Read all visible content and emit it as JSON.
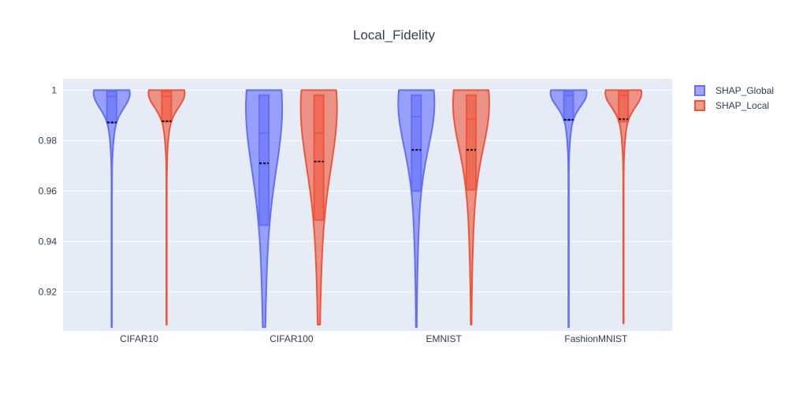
{
  "chart_data": {
    "type": "violin",
    "title": "Local_Fidelity",
    "xlabel": "",
    "ylabel": "",
    "categories": [
      "CIFAR10",
      "CIFAR100",
      "EMNIST",
      "FashionMNIST"
    ],
    "ylim": [
      0.9045,
      1.0045
    ],
    "yticks": [
      0.92,
      0.94,
      0.96,
      0.98,
      1
    ],
    "ytick_labels": [
      "0.92",
      "0.94",
      "0.96",
      "0.98",
      "1"
    ],
    "grid": true,
    "legend_position": "top-right",
    "series": [
      {
        "name": "SHAP_Global",
        "color": "#636efa",
        "fill": "rgba(99,110,250,0.6)",
        "stats": [
          {
            "min": 0.906,
            "q1": 0.987,
            "median": 0.9975,
            "q3": 0.9995,
            "max": 1.0,
            "mean": 0.9872
          },
          {
            "min": 0.906,
            "q1": 0.9465,
            "median": 0.983,
            "q3": 0.998,
            "max": 1.0,
            "mean": 0.971
          },
          {
            "min": 0.906,
            "q1": 0.96,
            "median": 0.9895,
            "q3": 0.998,
            "max": 1.0,
            "mean": 0.9763
          },
          {
            "min": 0.906,
            "q1": 0.988,
            "median": 0.998,
            "q3": 0.9995,
            "max": 1.0,
            "mean": 0.9883
          }
        ]
      },
      {
        "name": "SHAP_Local",
        "color": "#ef553b",
        "fill": "rgba(239,85,59,0.6)",
        "stats": [
          {
            "min": 0.907,
            "q1": 0.9875,
            "median": 0.9975,
            "q3": 0.9995,
            "max": 1.0,
            "mean": 0.9877
          },
          {
            "min": 0.907,
            "q1": 0.9485,
            "median": 0.983,
            "q3": 0.998,
            "max": 1.0,
            "mean": 0.9717
          },
          {
            "min": 0.907,
            "q1": 0.9605,
            "median": 0.9885,
            "q3": 0.998,
            "max": 1.0,
            "mean": 0.9763
          },
          {
            "min": 0.9075,
            "q1": 0.9875,
            "median": 0.998,
            "q3": 0.9995,
            "max": 1.0,
            "mean": 0.9885
          }
        ]
      }
    ]
  }
}
